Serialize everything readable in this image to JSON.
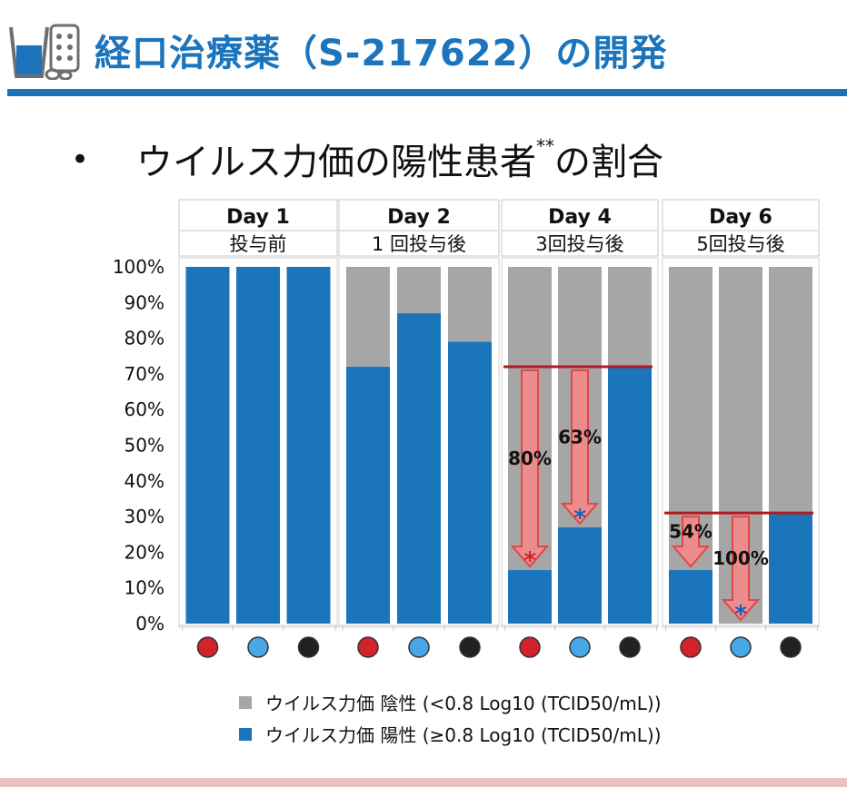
{
  "header": {
    "title": "経口治療薬（S-217622）の開発",
    "logo_icon": "water-glass-and-pills-icon"
  },
  "section": {
    "bullet": "•",
    "subtitle_text": "ウイルス力価の陽性患者",
    "subtitle_sup": "**",
    "subtitle_tail": "の割合"
  },
  "colors": {
    "positive": "#1b75bb",
    "negative": "#a6a6a6",
    "dot_red": "#d2232a",
    "dot_light_blue": "#47a7e8",
    "dot_black": "#222222",
    "bracket": "#b01b1f",
    "arrow_fill": "#f48b8b",
    "arrow_stroke": "#e04747",
    "star_red": "#d2232a",
    "star_blue": "#1b5fb0"
  },
  "chart_data": {
    "type": "bar",
    "stacked": true,
    "y_ticks": [
      "0%",
      "10%",
      "20%",
      "30%",
      "40%",
      "50%",
      "60%",
      "70%",
      "80%",
      "90%",
      "100%"
    ],
    "ylim": [
      0,
      100
    ],
    "grid": false,
    "groups": [
      {
        "day": "Day 1",
        "label": "投与前",
        "positive": [
          100,
          100,
          100
        ]
      },
      {
        "day": "Day 2",
        "label": "1 回投与後",
        "positive": [
          72,
          87,
          79
        ]
      },
      {
        "day": "Day 4",
        "label": "3回投与後",
        "positive": [
          15,
          27,
          72
        ]
      },
      {
        "day": "Day 6",
        "label": "5回投与後",
        "positive": [
          15,
          0,
          31
        ]
      }
    ],
    "arm_dots": [
      "dot_red",
      "dot_light_blue",
      "dot_black"
    ],
    "reductions": [
      {
        "group": 2,
        "bar": 0,
        "from": 72,
        "to": 15,
        "label": "80%",
        "star": "*",
        "star_color": "star_red"
      },
      {
        "group": 2,
        "bar": 1,
        "from": 72,
        "to": 27,
        "label": "63%",
        "star": "*",
        "star_color": "star_blue"
      },
      {
        "group": 3,
        "bar": 0,
        "from": 31,
        "to": 15,
        "label": "54%"
      },
      {
        "group": 3,
        "bar": 1,
        "from": 31,
        "to": 0,
        "label": "100%",
        "star": "*",
        "star_color": "star_blue"
      }
    ],
    "reference_lines": [
      {
        "group": 2,
        "value": 72
      },
      {
        "group": 3,
        "value": 31
      }
    ],
    "legend": [
      {
        "color_key": "negative",
        "label": "ウイルス力価 陰性 (<0.8 Log10 (TCID50/mL))"
      },
      {
        "color_key": "positive",
        "label": "ウイルス力価 陽性 (≥0.8 Log10 (TCID50/mL))"
      }
    ],
    "legend_placement": "bottom"
  }
}
